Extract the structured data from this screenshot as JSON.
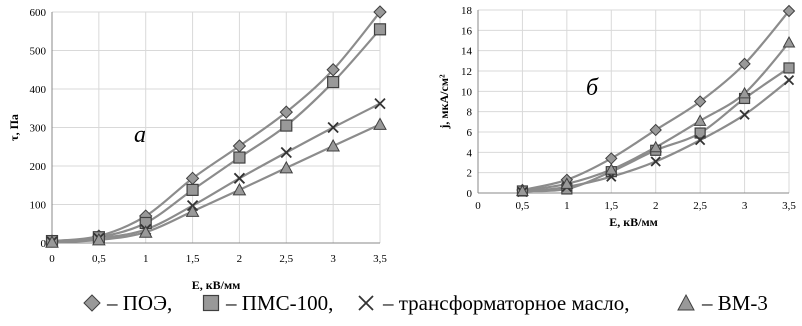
{
  "chart_data": [
    {
      "type": "line",
      "panel_label": "а",
      "xlabel": "E, кВ/мм",
      "ylabel": "τ, Па",
      "x_ticks": [
        "0",
        "0,5",
        "1",
        "1,5",
        "2",
        "2,5",
        "3",
        "3,5"
      ],
      "y_ticks": [
        "0",
        "100",
        "200",
        "300",
        "400",
        "500",
        "600"
      ],
      "xlim": [
        0,
        3.5
      ],
      "ylim": [
        0,
        600
      ],
      "grid": true,
      "series": [
        {
          "key": "poe",
          "marker": "diamond",
          "x": [
            0,
            0.5,
            1,
            1.5,
            2,
            2.5,
            3,
            3.5
          ],
          "y": [
            5,
            18,
            70,
            168,
            252,
            340,
            450,
            600
          ]
        },
        {
          "key": "pms",
          "marker": "square",
          "x": [
            0,
            0.5,
            1,
            1.5,
            2,
            2.5,
            3,
            3.5
          ],
          "y": [
            5,
            15,
            52,
            138,
            222,
            305,
            418,
            555
          ]
        },
        {
          "key": "tm",
          "marker": "cross",
          "x": [
            0,
            0.5,
            1,
            1.5,
            2,
            2.5,
            3,
            3.5
          ],
          "y": [
            3,
            12,
            35,
            97,
            168,
            235,
            300,
            362
          ]
        },
        {
          "key": "vm3",
          "marker": "triangle",
          "x": [
            0,
            0.5,
            1,
            1.5,
            2,
            2.5,
            3,
            3.5
          ],
          "y": [
            2,
            8,
            28,
            82,
            138,
            195,
            252,
            308
          ]
        }
      ]
    },
    {
      "type": "line",
      "panel_label": "б",
      "xlabel": "E, кВ/мм",
      "ylabel": "j, мкА/см²",
      "x_ticks": [
        "0",
        "0,5",
        "1",
        "1,5",
        "2",
        "2,5",
        "3",
        "3,5"
      ],
      "y_ticks": [
        "0",
        "2",
        "4",
        "6",
        "8",
        "10",
        "12",
        "14",
        "16",
        "18"
      ],
      "xlim": [
        0,
        3.5
      ],
      "ylim": [
        0,
        18
      ],
      "grid": true,
      "series": [
        {
          "key": "poe",
          "marker": "diamond",
          "x": [
            0.5,
            1,
            1.5,
            2,
            2.5,
            3,
            3.5
          ],
          "y": [
            0.3,
            1.3,
            3.4,
            6.2,
            9.0,
            12.7,
            17.9
          ]
        },
        {
          "key": "pms",
          "marker": "square",
          "x": [
            0.5,
            1,
            1.5,
            2,
            2.5,
            3,
            3.5
          ],
          "y": [
            0.2,
            0.4,
            2.1,
            4.2,
            5.9,
            9.3,
            12.3
          ]
        },
        {
          "key": "tm",
          "marker": "cross",
          "x": [
            0.5,
            1,
            1.5,
            2,
            2.5,
            3,
            3.5
          ],
          "y": [
            0.1,
            0.6,
            1.6,
            3.1,
            5.2,
            7.7,
            11.1
          ]
        },
        {
          "key": "vm3",
          "marker": "triangle",
          "x": [
            0.5,
            1,
            1.5,
            2,
            2.5,
            3,
            3.5
          ],
          "y": [
            0.2,
            0.9,
            2.3,
            4.5,
            7.1,
            9.8,
            14.8
          ]
        }
      ]
    }
  ],
  "legend": [
    {
      "key": "poe",
      "marker": "diamond",
      "label": "– ПОЭ,"
    },
    {
      "key": "pms",
      "marker": "square",
      "label": "– ПМС-100,"
    },
    {
      "key": "tm",
      "marker": "cross",
      "label": "– трансформаторное масло,"
    },
    {
      "key": "vm3",
      "marker": "triangle",
      "label": "– ВМ-3"
    }
  ],
  "colors": {
    "line": "#8c8c8c",
    "marker_fill": "#999999",
    "marker_stroke": "#404040",
    "grid": "#d9d9d9"
  }
}
